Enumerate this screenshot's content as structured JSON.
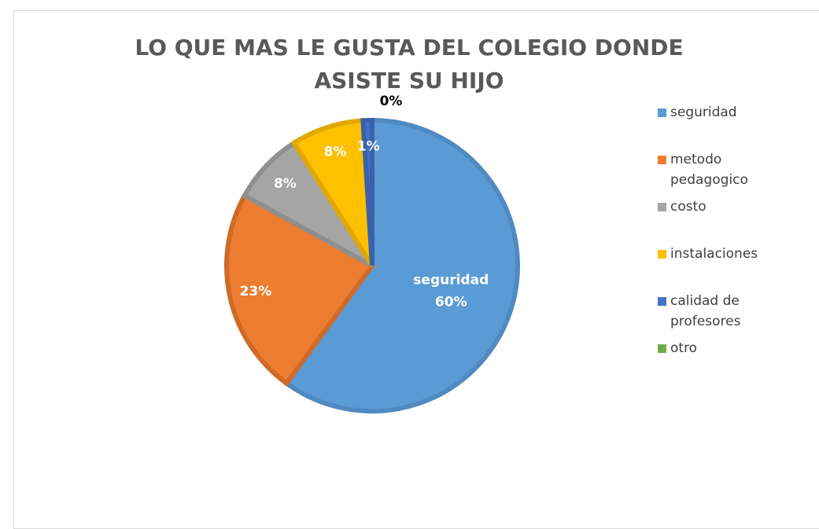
{
  "chart_data": {
    "type": "pie",
    "title": "LO QUE MAS LE GUSTA DEL  COLEGIO DONDE ASISTE SU HIJO",
    "categories": [
      "seguridad",
      "metodo pedagogico",
      "costo",
      "instalaciones",
      "calidad de profesores",
      "otro"
    ],
    "values": [
      60,
      23,
      8,
      8,
      1,
      0
    ],
    "value_labels": [
      "60%",
      "23%",
      "8%",
      "8%",
      "1%",
      "0%"
    ],
    "colors": [
      "#5b9bd5",
      "#ed7d31",
      "#a5a5a5",
      "#ffc000",
      "#4472c4",
      "#70ad47"
    ],
    "edge_colors": [
      "#4f8ac0",
      "#d06a27",
      "#8f8f8f",
      "#e2a800",
      "#3a62aa",
      "#5f9a3b"
    ],
    "legend": "right"
  }
}
